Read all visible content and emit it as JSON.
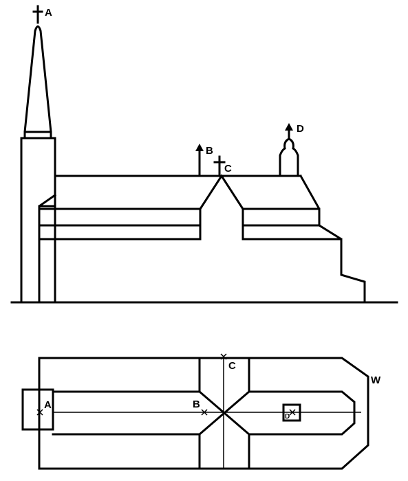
{
  "elevation": {
    "labels": {
      "spire_top": "A",
      "mast": "B",
      "crossing_cross": "C",
      "bell_turret": "D"
    }
  },
  "plan": {
    "labels": {
      "tower": "A",
      "crossing_point": "B",
      "transept_end": "C",
      "turret": "D",
      "apse": "W"
    }
  }
}
